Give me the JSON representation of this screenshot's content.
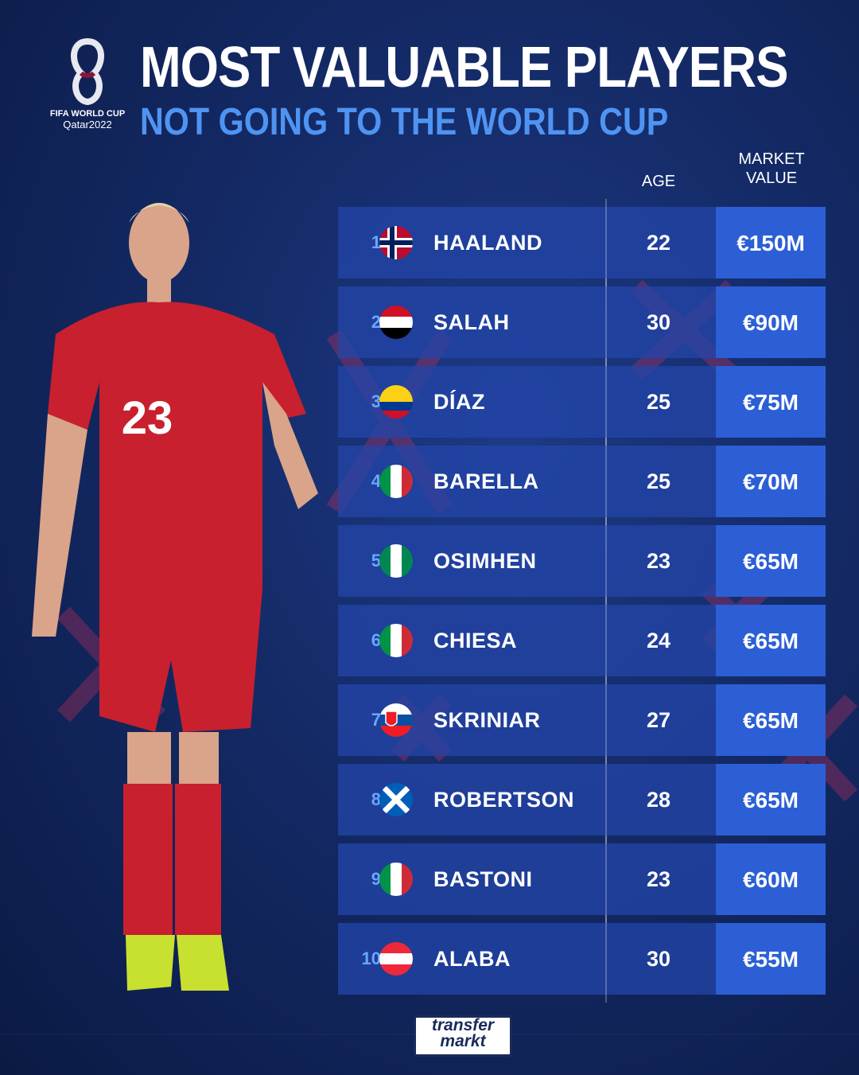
{
  "header": {
    "title": "MOST VALUABLE PLAYERS",
    "subtitle": "NOT GOING TO THE WORLD CUP"
  },
  "logo": {
    "line1": "FIFA WORLD CUP",
    "line2": "Qatar2022"
  },
  "table": {
    "columns": [
      "AGE",
      "MARKET VALUE"
    ],
    "rows": [
      [
        "1",
        "HAALAND",
        "22",
        "€150M"
      ],
      [
        "2",
        "SALAH",
        "30",
        "€90M"
      ],
      [
        "3",
        "DÍAZ",
        "25",
        "€75M"
      ],
      [
        "4",
        "BARELLA",
        "25",
        "€70M"
      ],
      [
        "5",
        "OSIMHEN",
        "23",
        "€65M"
      ],
      [
        "6",
        "CHIESA",
        "24",
        "€65M"
      ],
      [
        "7",
        "SKRINIAR",
        "27",
        "€65M"
      ],
      [
        "8",
        "ROBERTSON",
        "28",
        "€65M"
      ],
      [
        "9",
        "BASTONI",
        "23",
        "€60M"
      ],
      [
        "10",
        "ALABA",
        "30",
        "€55M"
      ]
    ]
  },
  "footer": {
    "brand_top": "transfer",
    "brand_bottom": "markt"
  }
}
